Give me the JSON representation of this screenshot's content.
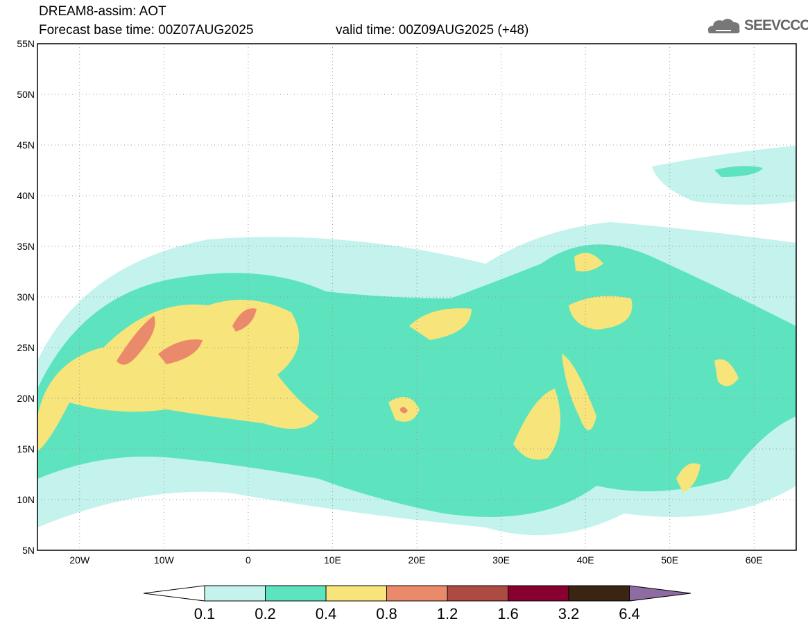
{
  "header": {
    "title": "DREAM8-assim: AOT",
    "base_time": "Forecast base time: 00Z07AUG2025",
    "valid_time": "valid time: 00Z09AUG2025 (+48)"
  },
  "logo": {
    "text": "SEEVCCC",
    "icon": "cloud-icon"
  },
  "map": {
    "lon_range": [
      -25,
      65
    ],
    "lat_range": [
      5,
      55
    ],
    "lat_labels": [
      "55N",
      "50N",
      "45N",
      "40N",
      "35N",
      "30N",
      "25N",
      "20N",
      "15N",
      "10N",
      "5N"
    ],
    "lon_labels": [
      "20W",
      "10W",
      "0",
      "10E",
      "20E",
      "30E",
      "40E",
      "50E",
      "60E"
    ]
  },
  "colorbar": {
    "labels": [
      "0.1",
      "0.2",
      "0.4",
      "0.8",
      "1.2",
      "1.6",
      "3.2",
      "6.4"
    ],
    "colors": [
      "#c3f3ec",
      "#5de4bf",
      "#f7e47a",
      "#eb8a6a",
      "#ad4a42",
      "#870030",
      "#3a2412",
      "#8e6ba0"
    ]
  }
}
